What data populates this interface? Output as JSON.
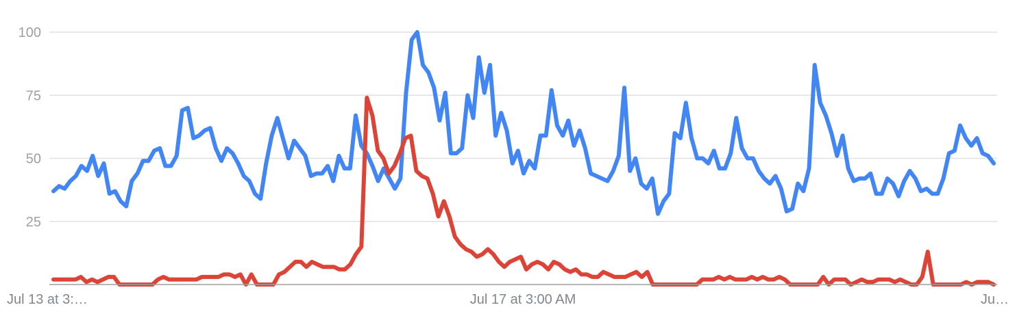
{
  "chart_data": {
    "type": "line",
    "ylim": [
      0,
      100
    ],
    "yticks": [
      "25",
      "50",
      "75",
      "100"
    ],
    "xtick_labels": [
      "Jul 13 at 3:…",
      "Jul 17 at 3:00 AM",
      "Ju…"
    ],
    "grid": true,
    "colors": [
      "#4285f4",
      "#db4437"
    ],
    "series": [
      {
        "values": [
          37,
          39,
          38,
          41,
          43,
          47,
          45,
          51,
          43,
          48,
          36,
          37,
          33,
          31,
          41,
          44,
          49,
          49,
          53,
          54,
          47,
          47,
          51,
          69,
          70,
          58,
          59,
          61,
          62,
          54,
          49,
          54,
          52,
          48,
          43,
          41,
          36,
          34,
          48,
          59,
          66,
          58,
          50,
          57,
          54,
          51,
          43,
          44,
          44,
          47,
          41,
          51,
          46,
          46,
          67,
          55,
          52,
          47,
          41,
          46,
          42,
          38,
          42,
          76,
          97,
          100,
          87,
          84,
          78,
          65,
          76,
          52,
          52,
          54,
          75,
          66,
          90,
          76,
          87,
          59,
          68,
          61,
          48,
          53,
          44,
          49,
          46,
          59,
          59,
          77,
          63,
          59,
          65,
          55,
          61,
          54,
          44,
          43,
          42,
          41,
          45,
          51,
          78,
          45,
          50,
          40,
          38,
          42,
          28,
          33,
          36,
          60,
          58,
          72,
          58,
          50,
          50,
          48,
          53,
          46,
          46,
          52,
          66,
          54,
          50,
          50,
          45,
          42,
          40,
          43,
          38,
          29,
          30,
          40,
          37,
          46,
          87,
          72,
          67,
          60,
          51,
          59,
          46,
          41,
          42,
          42,
          44,
          36,
          36,
          42,
          40,
          35,
          41,
          45,
          42,
          37,
          38,
          36,
          36,
          42,
          52,
          53,
          63,
          58,
          55,
          58,
          52,
          51,
          48
        ],
        "color": "#4285f4"
      },
      {
        "values": [
          2,
          2,
          2,
          2,
          2,
          3,
          1,
          2,
          1,
          2,
          3,
          3,
          0,
          0,
          0,
          0,
          0,
          0,
          0,
          2,
          3,
          2,
          2,
          2,
          2,
          2,
          2,
          3,
          3,
          3,
          3,
          4,
          4,
          3,
          4,
          0,
          4,
          0,
          0,
          0,
          0,
          4,
          5,
          7,
          9,
          9,
          7,
          9,
          8,
          7,
          7,
          7,
          6,
          6,
          8,
          12,
          15,
          74,
          67,
          53,
          50,
          44,
          47,
          52,
          58,
          59,
          45,
          43,
          42,
          36,
          27,
          33,
          27,
          19,
          16,
          14,
          13,
          11,
          12,
          14,
          12,
          9,
          7,
          9,
          10,
          11,
          6,
          8,
          9,
          8,
          6,
          9,
          8,
          6,
          5,
          6,
          4,
          4,
          3,
          3,
          5,
          4,
          3,
          3,
          3,
          4,
          5,
          3,
          5,
          0,
          0,
          0,
          0,
          0,
          0,
          0,
          0,
          0,
          2,
          2,
          2,
          3,
          2,
          3,
          2,
          2,
          2,
          3,
          2,
          3,
          2,
          2,
          3,
          2,
          0,
          0,
          0,
          0,
          0,
          0,
          3,
          0,
          2,
          2,
          2,
          0,
          1,
          2,
          1,
          1,
          2,
          2,
          2,
          1,
          2,
          1,
          0,
          0,
          3,
          13,
          0,
          0,
          0,
          0,
          0,
          0,
          1,
          0,
          1,
          1,
          1,
          0
        ],
        "color": "#db4437"
      }
    ]
  }
}
